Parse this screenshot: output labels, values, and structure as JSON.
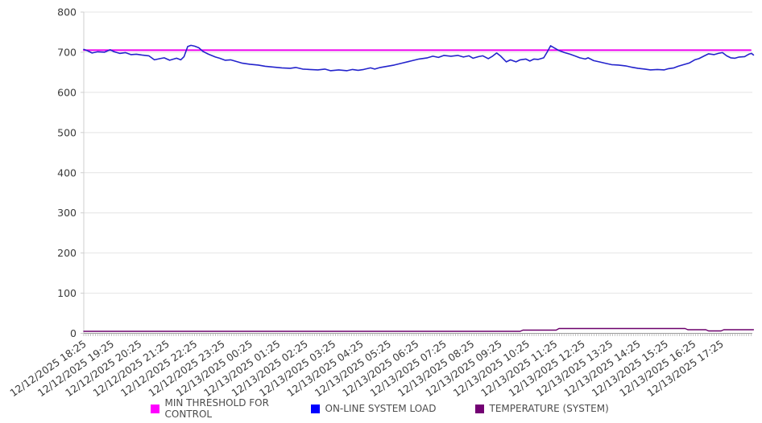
{
  "chart_data": {
    "type": "line",
    "title": "",
    "xlabel": "",
    "ylabel": "",
    "grid": "horizontal",
    "legend_position": "bottom",
    "y_axis": {
      "min": 0,
      "max": 800,
      "step": 100,
      "tick_labels": [
        "0",
        "100",
        "200",
        "300",
        "400",
        "500",
        "600",
        "700",
        "800"
      ]
    },
    "x_axis": {
      "unit": "time",
      "minor_tick_interval_minutes": 5,
      "hours_spanned": 24.17,
      "tick_labels": [
        "12/12/2025 18:25",
        "12/12/2025 19:25",
        "12/12/2025 20:25",
        "12/12/2025 21:25",
        "12/12/2025 22:25",
        "12/12/2025 23:25",
        "12/13/2025 00:25",
        "12/13/2025 01:25",
        "12/13/2025 02:25",
        "12/13/2025 03:25",
        "12/13/2025 04:25",
        "12/13/2025 05:25",
        "12/13/2025 06:25",
        "12/13/2025 07:25",
        "12/13/2025 08:25",
        "12/13/2025 09:25",
        "12/13/2025 10:25",
        "12/13/2025 11:25",
        "12/13/2025 12:25",
        "12/13/2025 13:25",
        "12/13/2025 14:25",
        "12/13/2025 15:25",
        "12/13/2025 16:25",
        "12/13/2025 17:25"
      ]
    },
    "series": [
      {
        "name": "MIN THRESHOLD FOR CONTROL",
        "color": "#ee00ee",
        "legend_color": "#ff00ff",
        "width": 2,
        "points": [
          [
            0,
            705
          ],
          [
            24.07,
            705
          ]
        ]
      },
      {
        "name": "ON-LINE SYSTEM LOAD",
        "color": "#2323cc",
        "legend_color": "#0000ff",
        "width": 1.6,
        "points": [
          [
            0,
            707
          ],
          [
            0.15,
            703
          ],
          [
            0.3,
            698
          ],
          [
            0.5,
            701
          ],
          [
            0.75,
            700
          ],
          [
            0.95,
            706
          ],
          [
            1.1,
            701
          ],
          [
            1.3,
            697
          ],
          [
            1.5,
            699
          ],
          [
            1.7,
            694
          ],
          [
            1.9,
            695
          ],
          [
            2.1,
            693
          ],
          [
            2.35,
            691
          ],
          [
            2.55,
            681
          ],
          [
            2.75,
            684
          ],
          [
            2.9,
            686
          ],
          [
            3.1,
            680
          ],
          [
            3.35,
            685
          ],
          [
            3.5,
            681
          ],
          [
            3.62,
            689
          ],
          [
            3.75,
            714
          ],
          [
            3.87,
            717
          ],
          [
            4.0,
            715
          ],
          [
            4.15,
            711
          ],
          [
            4.3,
            702
          ],
          [
            4.5,
            695
          ],
          [
            4.75,
            688
          ],
          [
            4.9,
            685
          ],
          [
            5.1,
            680
          ],
          [
            5.3,
            681
          ],
          [
            5.5,
            677
          ],
          [
            5.7,
            673
          ],
          [
            6.0,
            670
          ],
          [
            6.3,
            668
          ],
          [
            6.55,
            665
          ],
          [
            6.85,
            663
          ],
          [
            7.15,
            661
          ],
          [
            7.45,
            660
          ],
          [
            7.65,
            662
          ],
          [
            7.9,
            658
          ],
          [
            8.15,
            657
          ],
          [
            8.45,
            656
          ],
          [
            8.7,
            658
          ],
          [
            8.9,
            654
          ],
          [
            9.2,
            656
          ],
          [
            9.5,
            654
          ],
          [
            9.7,
            657
          ],
          [
            9.9,
            655
          ],
          [
            10.1,
            657
          ],
          [
            10.35,
            661
          ],
          [
            10.5,
            658
          ],
          [
            10.7,
            662
          ],
          [
            10.95,
            665
          ],
          [
            11.2,
            668
          ],
          [
            11.5,
            673
          ],
          [
            11.8,
            678
          ],
          [
            12.1,
            683
          ],
          [
            12.4,
            686
          ],
          [
            12.6,
            690
          ],
          [
            12.8,
            687
          ],
          [
            13.0,
            692
          ],
          [
            13.25,
            690
          ],
          [
            13.5,
            692
          ],
          [
            13.7,
            688
          ],
          [
            13.9,
            691
          ],
          [
            14.05,
            685
          ],
          [
            14.25,
            689
          ],
          [
            14.4,
            691
          ],
          [
            14.6,
            684
          ],
          [
            14.75,
            690
          ],
          [
            14.9,
            698
          ],
          [
            15.05,
            690
          ],
          [
            15.25,
            676
          ],
          [
            15.4,
            681
          ],
          [
            15.6,
            676
          ],
          [
            15.75,
            681
          ],
          [
            15.95,
            683
          ],
          [
            16.1,
            678
          ],
          [
            16.25,
            683
          ],
          [
            16.4,
            682
          ],
          [
            16.6,
            686
          ],
          [
            16.72,
            700
          ],
          [
            16.85,
            716
          ],
          [
            17.0,
            710
          ],
          [
            17.15,
            704
          ],
          [
            17.35,
            699
          ],
          [
            17.55,
            695
          ],
          [
            17.75,
            690
          ],
          [
            17.9,
            686
          ],
          [
            18.1,
            683
          ],
          [
            18.2,
            686
          ],
          [
            18.4,
            679
          ],
          [
            18.6,
            676
          ],
          [
            18.85,
            672
          ],
          [
            19.05,
            669
          ],
          [
            19.3,
            668
          ],
          [
            19.55,
            666
          ],
          [
            19.75,
            663
          ],
          [
            20.0,
            660
          ],
          [
            20.25,
            658
          ],
          [
            20.45,
            656
          ],
          [
            20.7,
            657
          ],
          [
            20.95,
            656
          ],
          [
            21.1,
            659
          ],
          [
            21.3,
            661
          ],
          [
            21.45,
            665
          ],
          [
            21.6,
            668
          ],
          [
            21.85,
            673
          ],
          [
            22.05,
            681
          ],
          [
            22.2,
            684
          ],
          [
            22.4,
            691
          ],
          [
            22.55,
            696
          ],
          [
            22.75,
            694
          ],
          [
            22.9,
            697
          ],
          [
            23.05,
            699
          ],
          [
            23.2,
            691
          ],
          [
            23.35,
            686
          ],
          [
            23.5,
            685
          ],
          [
            23.65,
            688
          ],
          [
            23.85,
            689
          ],
          [
            24.0,
            695
          ],
          [
            24.1,
            697
          ],
          [
            24.17,
            693
          ]
        ]
      },
      {
        "name": "TEMPERATURE (SYSTEM)",
        "color": "#6b006b",
        "legend_color": "#730073",
        "width": 1.4,
        "points": [
          [
            0,
            5
          ],
          [
            15.75,
            5
          ],
          [
            15.85,
            8
          ],
          [
            17.05,
            8
          ],
          [
            17.15,
            12
          ],
          [
            21.7,
            12
          ],
          [
            21.8,
            9
          ],
          [
            22.45,
            9
          ],
          [
            22.55,
            6
          ],
          [
            23.0,
            6
          ],
          [
            23.1,
            9
          ],
          [
            24.17,
            9
          ]
        ]
      }
    ],
    "style": {
      "grid_color": "#e4e4e4",
      "axis_left_color": "#cfcfcf",
      "axis_bottom_color": "#9a9a9a",
      "minor_tick_color": "#b5b5b5",
      "tick_text_color": "#3a3a3a",
      "legend_text_color": "#4d4d4d"
    }
  }
}
